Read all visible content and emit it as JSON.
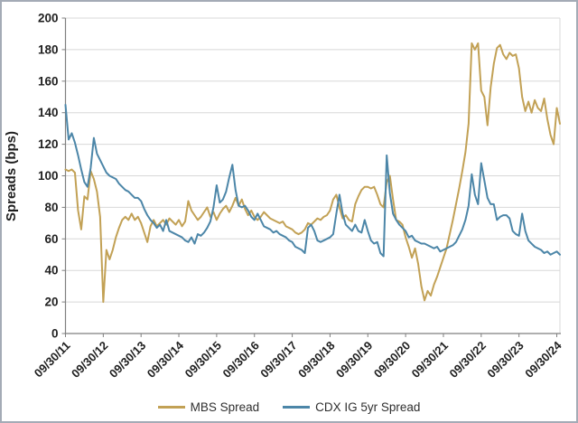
{
  "chart_data": {
    "type": "line",
    "title": "",
    "ylabel": "Spreads (bps)",
    "xlabel": "",
    "ylim": [
      0,
      200
    ],
    "ytick_step": 20,
    "grid": "horizontal",
    "legend_position": "bottom-center",
    "x_unit": "monthly observations from 2011-09-30 through 2024-10-31",
    "x_tick_labels": [
      "09/30/11",
      "09/30/12",
      "09/30/13",
      "09/30/14",
      "09/30/15",
      "09/30/16",
      "09/30/17",
      "09/30/18",
      "09/30/19",
      "09/30/20",
      "09/30/21",
      "09/30/22",
      "09/30/23",
      "09/30/24"
    ],
    "x_tick_positions": [
      0,
      12,
      24,
      36,
      48,
      60,
      72,
      84,
      96,
      108,
      120,
      132,
      144,
      156
    ],
    "axis_color": "#7f7f7f",
    "gridline_color": "#d8d8d8",
    "text_color": "#1f1f1f",
    "series": [
      {
        "name": "MBS Spread",
        "color": "#C2A155",
        "values": [
          104,
          103,
          104,
          102,
          78,
          66,
          87,
          85,
          103,
          98,
          90,
          74,
          20,
          53,
          47,
          53,
          61,
          67,
          72,
          74,
          72,
          76,
          72,
          74,
          70,
          64,
          58,
          68,
          72,
          68,
          70,
          72,
          69,
          73,
          71,
          69,
          72,
          68,
          71,
          84,
          78,
          75,
          72,
          74,
          77,
          80,
          74,
          77,
          72,
          76,
          79,
          81,
          77,
          81,
          86,
          81,
          85,
          79,
          75,
          78,
          74,
          72,
          74,
          77,
          75,
          73,
          72,
          71,
          70,
          71,
          68,
          67,
          66,
          64,
          63,
          64,
          66,
          70,
          69,
          71,
          73,
          72,
          74,
          75,
          78,
          85,
          88,
          80,
          73,
          75,
          72,
          71,
          82,
          87,
          91,
          93,
          93,
          92,
          93,
          88,
          82,
          80,
          96,
          100,
          85,
          72,
          71,
          69,
          61,
          55,
          48,
          54,
          44,
          30,
          21,
          27,
          24,
          31,
          36,
          42,
          48,
          54,
          63,
          72,
          82,
          92,
          103,
          115,
          133,
          184,
          180,
          184,
          154,
          150,
          132,
          156,
          171,
          181,
          183,
          177,
          174,
          178,
          176,
          177,
          168,
          150,
          141,
          147,
          140,
          148,
          143,
          141,
          149,
          136,
          126,
          120,
          143,
          133
        ]
      },
      {
        "name": "CDX IG 5yr Spread",
        "color": "#4C86A8",
        "values": [
          145,
          123,
          127,
          121,
          113,
          104,
          96,
          93,
          105,
          124,
          114,
          110,
          106,
          102,
          100,
          99,
          98,
          95,
          93,
          91,
          90,
          88,
          86,
          86,
          84,
          79,
          75,
          72,
          70,
          67,
          69,
          65,
          72,
          65,
          64,
          63,
          62,
          61,
          59,
          58,
          61,
          57,
          63,
          62,
          64,
          67,
          71,
          80,
          94,
          83,
          85,
          90,
          99,
          107,
          91,
          81,
          80,
          81,
          78,
          74,
          72,
          76,
          72,
          68,
          67,
          66,
          64,
          65,
          63,
          62,
          61,
          59,
          58,
          55,
          54,
          53,
          51,
          67,
          69,
          65,
          59,
          58,
          59,
          60,
          61,
          63,
          76,
          88,
          76,
          69,
          67,
          65,
          69,
          65,
          64,
          72,
          65,
          59,
          57,
          58,
          51,
          49,
          113,
          89,
          76,
          72,
          69,
          67,
          65,
          61,
          62,
          59,
          58,
          57,
          57,
          56,
          55,
          54,
          55,
          52,
          53,
          54,
          55,
          56,
          58,
          62,
          66,
          72,
          81,
          101,
          88,
          82,
          108,
          97,
          86,
          82,
          82,
          72,
          74,
          75,
          75,
          73,
          65,
          63,
          62,
          76,
          65,
          59,
          57,
          55,
          54,
          53,
          51,
          52,
          50,
          51,
          52,
          50
        ]
      }
    ]
  }
}
